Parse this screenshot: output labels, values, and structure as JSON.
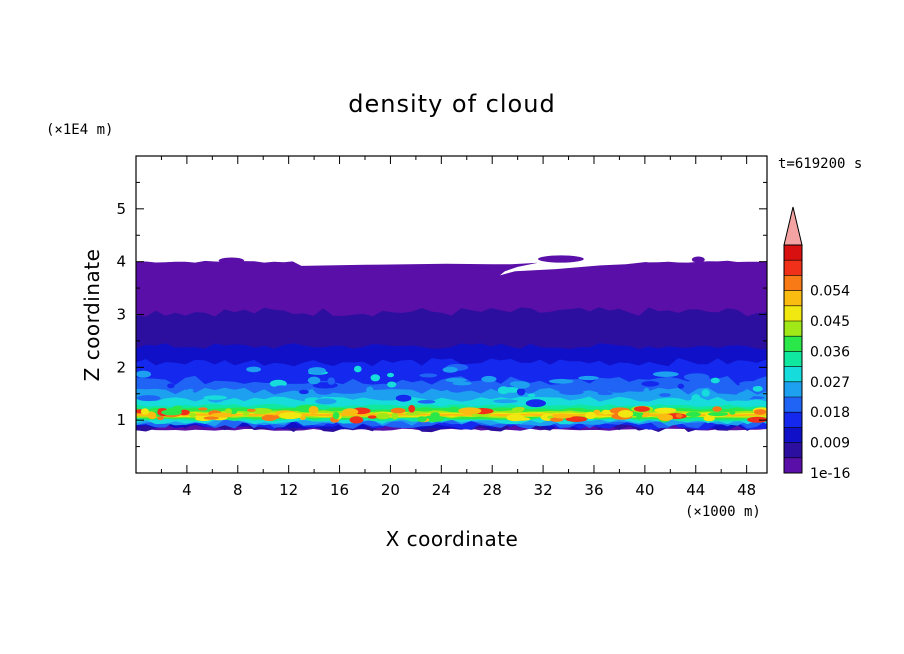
{
  "chart_data": {
    "type": "heatmap",
    "title": "density of cloud",
    "xlabel": "X coordinate",
    "ylabel": "Z coordinate",
    "x_unit": "(×1000 m)",
    "y_unit": "(×1E4 m)",
    "time_label": "t=619200 s",
    "xlim": [
      0,
      49.6
    ],
    "ylim": [
      0,
      6
    ],
    "x_ticks": [
      "4",
      "8",
      "12",
      "16",
      "20",
      "24",
      "28",
      "32",
      "36",
      "40",
      "44",
      "48"
    ],
    "y_ticks": [
      "1",
      "2",
      "3",
      "4",
      "5"
    ],
    "colorbar": {
      "labels": [
        "1e-16",
        "0.009",
        "0.018",
        "0.027",
        "0.036",
        "0.045",
        "0.054"
      ],
      "levels": [
        0,
        0.0045,
        0.009,
        0.0135,
        0.018,
        0.0225,
        0.027,
        0.0315,
        0.036,
        0.0405,
        0.045,
        0.0495,
        0.054,
        0.0585
      ],
      "colors": [
        "#5a0fa8",
        "#2d0fa0",
        "#1010c8",
        "#1428ee",
        "#1f64f5",
        "#1ea0f0",
        "#16dcdc",
        "#10e8a0",
        "#2ae84a",
        "#a0e818",
        "#f0e810",
        "#fbbc12",
        "#f87a16",
        "#f03018",
        "#d81010"
      ],
      "extend_color": "#f4a3a3"
    },
    "layers": [
      {
        "z_range": [
          0.82,
          0.9
        ],
        "level": "1e-16 – 0.0045"
      },
      {
        "z_range": [
          0.9,
          1.0
        ],
        "level": "0.009 – 0.027"
      },
      {
        "z_range": [
          1.0,
          1.2
        ],
        "level": "0.027 – 0.058"
      },
      {
        "z_range": [
          1.2,
          1.5
        ],
        "level": "0.018 – 0.036"
      },
      {
        "z_range": [
          1.5,
          2.0
        ],
        "level": "0.009 – 0.027"
      },
      {
        "z_range": [
          2.0,
          2.4
        ],
        "level": "0.0045 – 0.018"
      },
      {
        "z_range": [
          2.4,
          3.0
        ],
        "level": "0.0045 – 0.009"
      },
      {
        "z_range": [
          3.0,
          4.0
        ],
        "level": "1e-16 – 0.0045"
      }
    ]
  }
}
